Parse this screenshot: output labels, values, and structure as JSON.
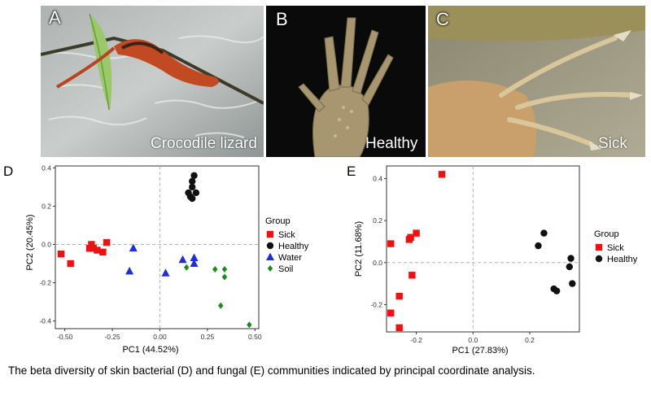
{
  "photos": [
    {
      "letter": "A",
      "caption": "Crocodile lizard"
    },
    {
      "letter": "B",
      "caption": "Healthy"
    },
    {
      "letter": "C",
      "caption": "Sick"
    }
  ],
  "caption": "The beta diversity of skin bacterial (D) and fungal (E) communities indicated by principal coordinate analysis.",
  "colors": {
    "Sick": "#ee1111",
    "Healthy": "#111111",
    "Water": "#1f2fd6",
    "Soil": "#1a8a1a"
  },
  "chart_data": [
    {
      "panel": "D",
      "type": "scatter",
      "xlabel": "PC1 (44.52%)",
      "ylabel": "PC2 (20.45%)",
      "xlim": [
        -0.55,
        0.52
      ],
      "ylim": [
        -0.44,
        0.41
      ],
      "xticks": [
        "-0.50",
        "-0.25",
        "0.00",
        "0.25",
        "0.50"
      ],
      "xtick_values": [
        -0.5,
        -0.25,
        0.0,
        0.25,
        0.5
      ],
      "yticks": [
        "-0.4",
        "-0.2",
        "0.0",
        "0.2",
        "0.4"
      ],
      "ytick_values": [
        -0.4,
        -0.2,
        0.0,
        0.2,
        0.4
      ],
      "zero_lines": true,
      "legend_title": "Group",
      "legend_position": "right",
      "series": [
        {
          "name": "Sick",
          "marker": "square",
          "points": [
            [
              -0.52,
              -0.05
            ],
            [
              -0.47,
              -0.1
            ],
            [
              -0.37,
              -0.02
            ],
            [
              -0.36,
              0.0
            ],
            [
              -0.35,
              -0.02
            ],
            [
              -0.33,
              -0.03
            ],
            [
              -0.3,
              -0.04
            ],
            [
              -0.28,
              0.01
            ]
          ]
        },
        {
          "name": "Healthy",
          "marker": "circle",
          "points": [
            [
              0.18,
              0.36
            ],
            [
              0.17,
              0.33
            ],
            [
              0.17,
              0.3
            ],
            [
              0.15,
              0.27
            ],
            [
              0.19,
              0.27
            ],
            [
              0.16,
              0.25
            ],
            [
              0.17,
              0.24
            ]
          ]
        },
        {
          "name": "Water",
          "marker": "triangle",
          "points": [
            [
              -0.14,
              -0.02
            ],
            [
              -0.16,
              -0.14
            ],
            [
              0.03,
              -0.15
            ],
            [
              0.12,
              -0.08
            ],
            [
              0.18,
              -0.07
            ],
            [
              0.18,
              -0.1
            ]
          ]
        },
        {
          "name": "Soil",
          "marker": "diamond",
          "points": [
            [
              0.14,
              -0.12
            ],
            [
              0.29,
              -0.13
            ],
            [
              0.34,
              -0.13
            ],
            [
              0.34,
              -0.17
            ],
            [
              0.32,
              -0.32
            ],
            [
              0.47,
              -0.42
            ]
          ]
        }
      ]
    },
    {
      "panel": "E",
      "type": "scatter",
      "xlabel": "PC1 (27.83%)",
      "ylabel": "PC2 (11.68%)",
      "xlim": [
        -0.305,
        0.375
      ],
      "ylim": [
        -0.33,
        0.46
      ],
      "xticks": [
        "-0.2",
        "0.0",
        "0.2"
      ],
      "xtick_values": [
        -0.2,
        0.0,
        0.2
      ],
      "yticks": [
        "-0.2",
        "0.0",
        "0.2",
        "0.4"
      ],
      "ytick_values": [
        -0.2,
        0.0,
        0.2,
        0.4
      ],
      "zero_lines": true,
      "legend_title": "Group",
      "legend_position": "right",
      "series": [
        {
          "name": "Sick",
          "marker": "square",
          "points": [
            [
              -0.11,
              0.42
            ],
            [
              -0.2,
              0.14
            ],
            [
              -0.22,
              0.12
            ],
            [
              -0.225,
              0.11
            ],
            [
              -0.29,
              0.09
            ],
            [
              -0.215,
              -0.06
            ],
            [
              -0.26,
              -0.16
            ],
            [
              -0.29,
              -0.24
            ],
            [
              -0.26,
              -0.31
            ]
          ]
        },
        {
          "name": "Healthy",
          "marker": "circle",
          "points": [
            [
              0.25,
              0.14
            ],
            [
              0.23,
              0.08
            ],
            [
              0.345,
              0.02
            ],
            [
              0.34,
              -0.02
            ],
            [
              0.35,
              -0.1
            ],
            [
              0.285,
              -0.125
            ],
            [
              0.295,
              -0.135
            ]
          ]
        }
      ]
    }
  ]
}
